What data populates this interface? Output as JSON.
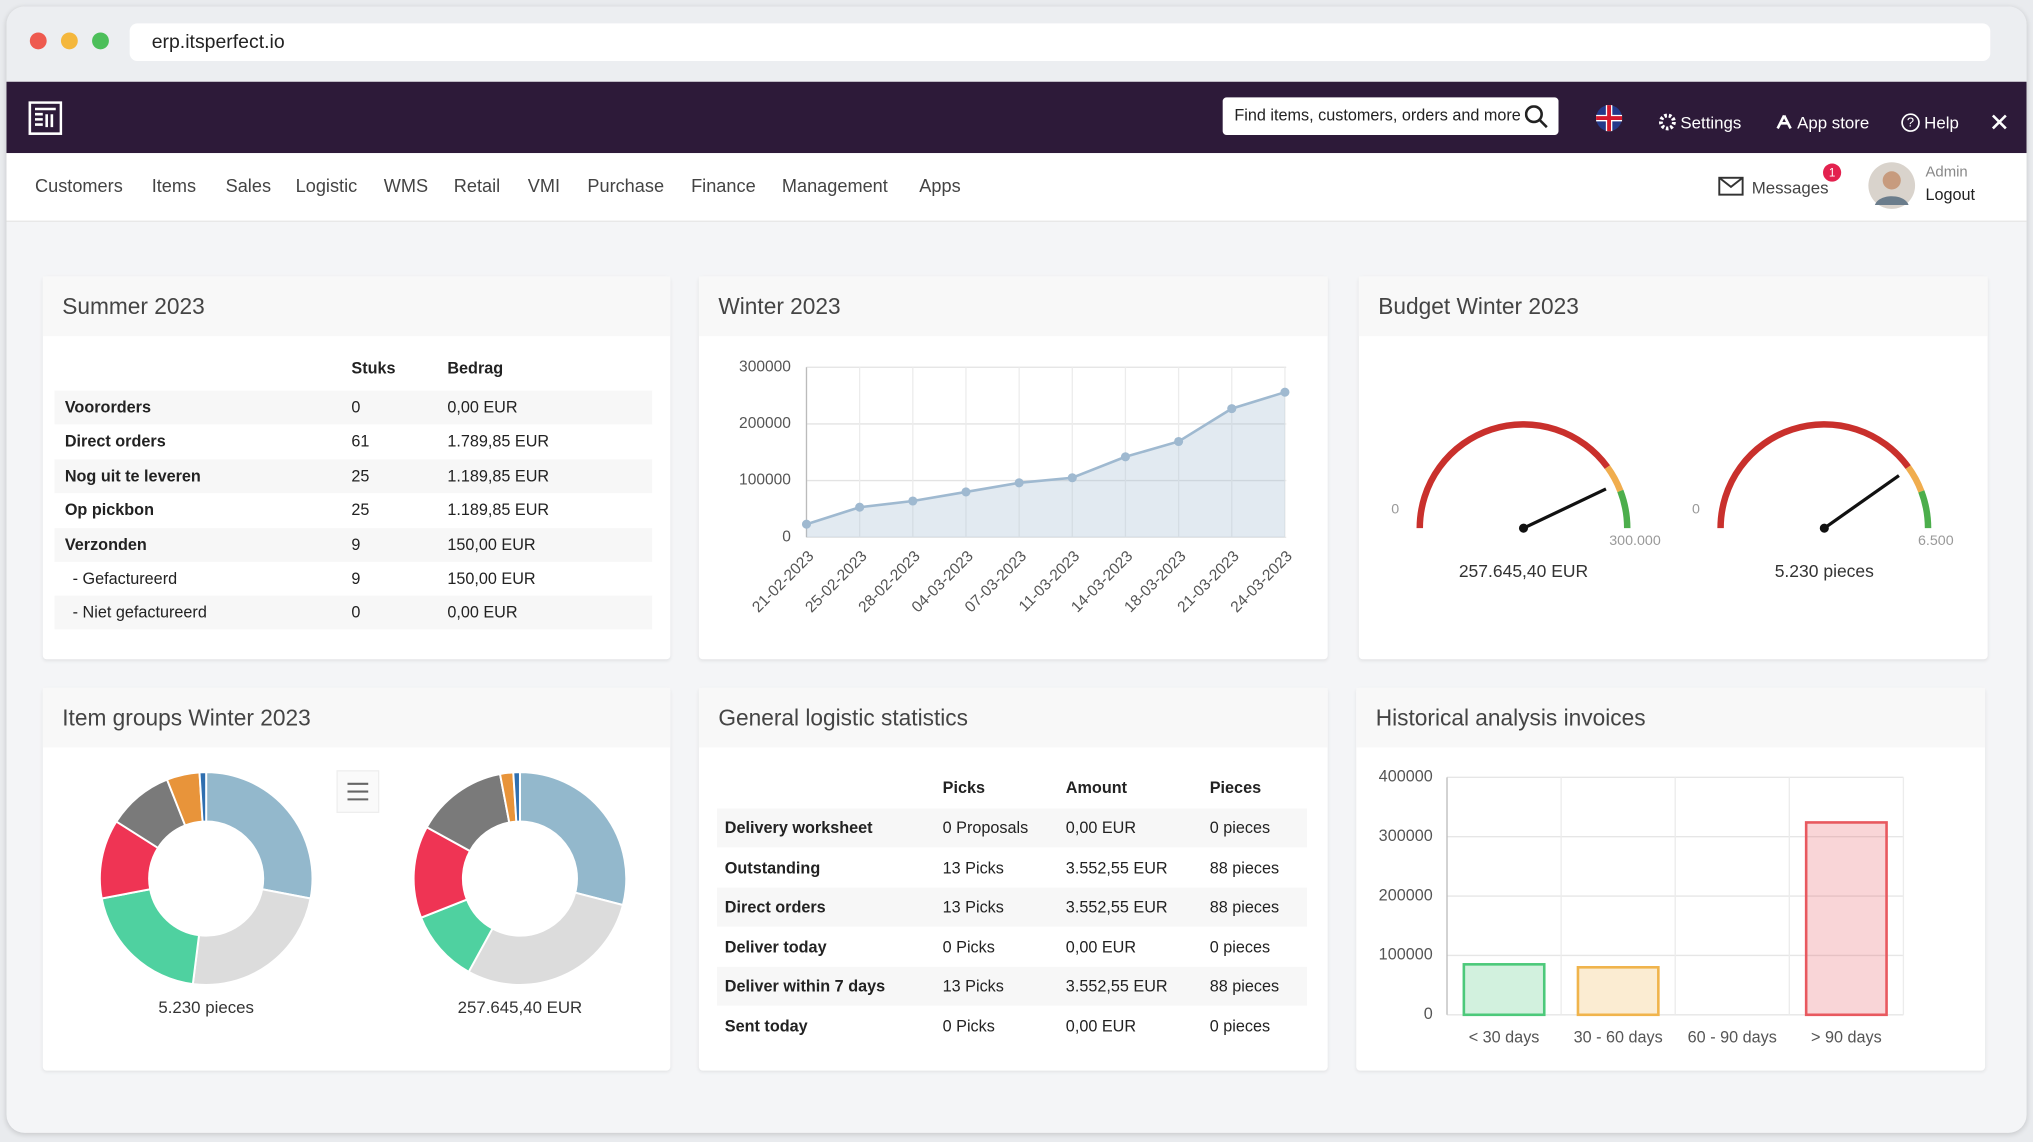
{
  "browser": {
    "url": "erp.itsperfect.io"
  },
  "topbar": {
    "search_placeholder": "Find items, customers, orders and more",
    "links": [
      "Settings",
      "App store",
      "Help"
    ]
  },
  "nav": {
    "items": [
      "Customers",
      "Items",
      "Sales",
      "Logistic",
      "WMS",
      "Retail",
      "VMI",
      "Purchase",
      "Finance",
      "Management",
      "Apps"
    ],
    "messages": "Messages",
    "messages_badge": 1,
    "user": "Admin",
    "logout": "Logout"
  },
  "summer": {
    "title": "Summer 2023",
    "columns": [
      "Stuks",
      "Bedrag"
    ],
    "rows": [
      [
        "Voororders",
        "0",
        "0,00 EUR"
      ],
      [
        "Direct orders",
        "61",
        "1.789,85 EUR"
      ],
      [
        "Nog uit te leveren",
        "25",
        "1.189,85 EUR"
      ],
      [
        "Op pickbon",
        "25",
        "1.189,85 EUR"
      ],
      [
        "Verzonden",
        "9",
        "150,00 EUR"
      ],
      [
        "- Gefactureerd",
        "9",
        "150,00 EUR"
      ],
      [
        "- Niet gefactureerd",
        "0",
        "0,00 EUR"
      ]
    ]
  },
  "logistic": {
    "title": "General logistic statistics",
    "columns": [
      "Picks",
      "Amount",
      "Pieces"
    ],
    "rows": [
      [
        "Delivery worksheet",
        "0 Proposals",
        "0,00 EUR",
        "0 pieces"
      ],
      [
        "Outstanding",
        "13 Picks",
        "3.552,55 EUR",
        "88 pieces"
      ],
      [
        "Direct orders",
        "13 Picks",
        "3.552,55 EUR",
        "88 pieces"
      ],
      [
        "Deliver today",
        "0 Picks",
        "0,00 EUR",
        "0 pieces"
      ],
      [
        "Deliver within 7 days",
        "13 Picks",
        "3.552,55 EUR",
        "88 pieces"
      ],
      [
        "Sent today",
        "0 Picks",
        "0,00 EUR",
        "0 pieces"
      ]
    ]
  },
  "chart_data": [
    {
      "type": "line",
      "title": "Winter 2023",
      "x": [
        "21-02-2023",
        "25-02-2023",
        "28-02-2023",
        "04-03-2023",
        "07-03-2023",
        "11-03-2023",
        "14-03-2023",
        "18-03-2023",
        "21-03-2023",
        "24-03-2023"
      ],
      "values": [
        23000,
        53000,
        64000,
        80000,
        96000,
        105000,
        142000,
        169000,
        227000,
        256000
      ],
      "ylim": [
        0,
        300000
      ],
      "yticks": [
        0,
        100000,
        200000,
        300000
      ],
      "grid": true,
      "color": "#9fb9d0"
    },
    {
      "type": "gauge",
      "title": "Budget Winter 2023",
      "value": 257645.4,
      "value_label": "257.645,40 EUR",
      "ylim": [
        0,
        300000
      ],
      "yticks": [
        0,
        {
          "value": 300000,
          "label": "300.000"
        }
      ],
      "bands": [
        {
          "to": 240000,
          "color": "#c9302c"
        },
        {
          "to": 265000,
          "color": "#f0ad4e"
        },
        {
          "to": 300000,
          "color": "#4cae4c"
        }
      ]
    },
    {
      "type": "gauge",
      "value": 5230,
      "value_label": "5.230 pieces",
      "ylim": [
        0,
        6500
      ],
      "yticks": [
        0,
        {
          "value": 6500,
          "label": "6.500"
        }
      ],
      "bands": [
        {
          "to": 5200,
          "color": "#c9302c"
        },
        {
          "to": 5750,
          "color": "#f0ad4e"
        },
        {
          "to": 6500,
          "color": "#4cae4c"
        }
      ]
    },
    {
      "type": "donut",
      "title": "Item groups Winter 2023",
      "label": "5.230 pieces",
      "values": [
        28,
        24,
        20,
        12,
        10,
        5,
        1
      ],
      "colors": [
        "#93b8cc",
        "#dcdcdc",
        "#4fd1a0",
        "#ef3454",
        "#7a7a7a",
        "#e8943a",
        "#2f6fb0"
      ]
    },
    {
      "type": "donut",
      "label": "257.645,40 EUR",
      "values": [
        29,
        29,
        11,
        14,
        14,
        2,
        1
      ],
      "colors": [
        "#93b8cc",
        "#dcdcdc",
        "#4fd1a0",
        "#ef3454",
        "#7a7a7a",
        "#e8943a",
        "#2f6fb0"
      ]
    },
    {
      "type": "bar",
      "title": "Historical analysis invoices",
      "categories": [
        "< 30 days",
        "30 - 60 days",
        "60 - 90 days",
        "> 90 days"
      ],
      "values": [
        85000,
        80000,
        0,
        324000
      ],
      "colors": [
        "#4cc97a",
        "#f0b44c",
        "#5b9bd5",
        "#e8595f"
      ],
      "ylim": [
        0,
        400000
      ],
      "yticks": [
        0,
        100000,
        200000,
        300000,
        400000
      ],
      "grid": true
    }
  ]
}
